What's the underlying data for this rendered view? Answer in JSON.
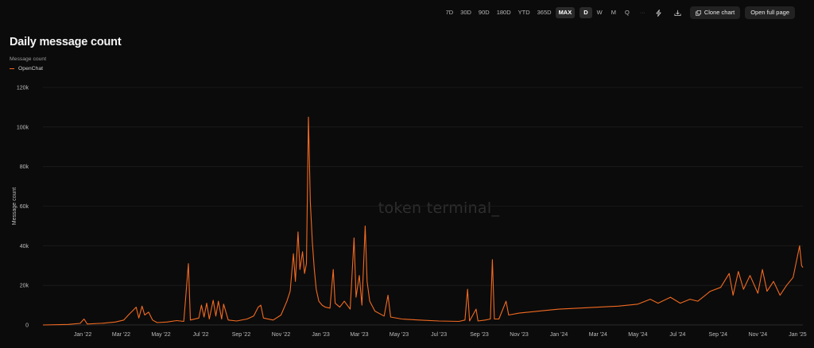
{
  "toolbar": {
    "ranges": [
      "7D",
      "30D",
      "90D",
      "180D",
      "YTD",
      "365D",
      "MAX"
    ],
    "active_range": "MAX",
    "granularities": [
      "D",
      "W",
      "M",
      "Q"
    ],
    "active_granularity": "D",
    "more": "···",
    "clone_label": "Clone chart",
    "open_label": "Open full page"
  },
  "chart_data": {
    "type": "line",
    "title": "Daily message count",
    "legend_title": "Message count",
    "legend_position": "top-left",
    "series": [
      {
        "name": "OpenChat",
        "color": "#f26a21",
        "points": [
          [
            "2021-11-01",
            0
          ],
          [
            "2021-12-10",
            300
          ],
          [
            "2021-12-28",
            800
          ],
          [
            "2022-01-03",
            3000
          ],
          [
            "2022-01-08",
            500
          ],
          [
            "2022-02-01",
            900
          ],
          [
            "2022-02-20",
            1500
          ],
          [
            "2022-03-05",
            2500
          ],
          [
            "2022-03-12",
            5000
          ],
          [
            "2022-03-18",
            7000
          ],
          [
            "2022-03-24",
            9000
          ],
          [
            "2022-03-28",
            3500
          ],
          [
            "2022-04-02",
            9500
          ],
          [
            "2022-04-06",
            5000
          ],
          [
            "2022-04-12",
            6500
          ],
          [
            "2022-04-18",
            2500
          ],
          [
            "2022-04-25",
            1200
          ],
          [
            "2022-05-10",
            1500
          ],
          [
            "2022-05-25",
            2200
          ],
          [
            "2022-06-05",
            1800
          ],
          [
            "2022-06-12",
            31000
          ],
          [
            "2022-06-15",
            2500
          ],
          [
            "2022-06-28",
            3500
          ],
          [
            "2022-07-02",
            10000
          ],
          [
            "2022-07-06",
            4000
          ],
          [
            "2022-07-10",
            11000
          ],
          [
            "2022-07-14",
            3000
          ],
          [
            "2022-07-20",
            12500
          ],
          [
            "2022-07-24",
            4500
          ],
          [
            "2022-07-28",
            12000
          ],
          [
            "2022-08-02",
            3000
          ],
          [
            "2022-08-05",
            10500
          ],
          [
            "2022-08-12",
            2500
          ],
          [
            "2022-08-25",
            2000
          ],
          [
            "2022-09-10",
            3000
          ],
          [
            "2022-09-20",
            4500
          ],
          [
            "2022-09-27",
            9000
          ],
          [
            "2022-10-01",
            10000
          ],
          [
            "2022-10-05",
            3500
          ],
          [
            "2022-10-20",
            2500
          ],
          [
            "2022-11-01",
            5000
          ],
          [
            "2022-11-10",
            12000
          ],
          [
            "2022-11-15",
            17000
          ],
          [
            "2022-11-20",
            36000
          ],
          [
            "2022-11-23",
            22000
          ],
          [
            "2022-11-27",
            47000
          ],
          [
            "2022-11-30",
            28000
          ],
          [
            "2022-12-04",
            37000
          ],
          [
            "2022-12-07",
            26000
          ],
          [
            "2022-12-10",
            31000
          ],
          [
            "2022-12-13",
            105000
          ],
          [
            "2022-12-16",
            62000
          ],
          [
            "2022-12-19",
            42000
          ],
          [
            "2022-12-22",
            28000
          ],
          [
            "2022-12-25",
            18000
          ],
          [
            "2022-12-29",
            12000
          ],
          [
            "2023-01-03",
            10000
          ],
          [
            "2023-01-08",
            9000
          ],
          [
            "2023-01-15",
            8500
          ],
          [
            "2023-01-20",
            28000
          ],
          [
            "2023-01-23",
            11000
          ],
          [
            "2023-01-30",
            9000
          ],
          [
            "2023-02-06",
            12000
          ],
          [
            "2023-02-15",
            8000
          ],
          [
            "2023-02-21",
            44000
          ],
          [
            "2023-02-24",
            14000
          ],
          [
            "2023-03-01",
            25000
          ],
          [
            "2023-03-05",
            10000
          ],
          [
            "2023-03-10",
            50000
          ],
          [
            "2023-03-13",
            22000
          ],
          [
            "2023-03-17",
            12000
          ],
          [
            "2023-03-25",
            7000
          ],
          [
            "2023-04-08",
            4500
          ],
          [
            "2023-04-14",
            15000
          ],
          [
            "2023-04-18",
            4000
          ],
          [
            "2023-05-05",
            3000
          ],
          [
            "2023-06-01",
            2500
          ],
          [
            "2023-07-01",
            2000
          ],
          [
            "2023-08-01",
            1800
          ],
          [
            "2023-08-10",
            2500
          ],
          [
            "2023-08-14",
            18000
          ],
          [
            "2023-08-17",
            2000
          ],
          [
            "2023-08-27",
            8000
          ],
          [
            "2023-08-30",
            2000
          ],
          [
            "2023-09-10",
            2500
          ],
          [
            "2023-09-18",
            3000
          ],
          [
            "2023-09-21",
            33000
          ],
          [
            "2023-09-24",
            3000
          ],
          [
            "2023-10-01",
            3000
          ],
          [
            "2023-10-12",
            12000
          ],
          [
            "2023-10-16",
            5000
          ],
          [
            "2023-11-01",
            6000
          ],
          [
            "2023-12-01",
            7000
          ],
          [
            "2024-01-01",
            8000
          ],
          [
            "2024-02-01",
            8500
          ],
          [
            "2024-03-01",
            9000
          ],
          [
            "2024-04-01",
            9500
          ],
          [
            "2024-05-01",
            10500
          ],
          [
            "2024-05-20",
            13000
          ],
          [
            "2024-06-01",
            11000
          ],
          [
            "2024-06-20",
            14000
          ],
          [
            "2024-07-05",
            11000
          ],
          [
            "2024-07-20",
            13000
          ],
          [
            "2024-08-01",
            12000
          ],
          [
            "2024-08-20",
            17000
          ],
          [
            "2024-09-05",
            19000
          ],
          [
            "2024-09-18",
            26000
          ],
          [
            "2024-09-24",
            15000
          ],
          [
            "2024-10-02",
            27000
          ],
          [
            "2024-10-10",
            18000
          ],
          [
            "2024-10-20",
            25000
          ],
          [
            "2024-11-01",
            16000
          ],
          [
            "2024-11-08",
            28000
          ],
          [
            "2024-11-15",
            17000
          ],
          [
            "2024-11-25",
            22000
          ],
          [
            "2024-12-05",
            15000
          ],
          [
            "2024-12-15",
            20000
          ],
          [
            "2024-12-25",
            24000
          ],
          [
            "2025-01-04",
            40000
          ],
          [
            "2025-01-07",
            30000
          ],
          [
            "2025-01-09",
            29000
          ]
        ]
      }
    ],
    "x_ticks": [
      [
        "2022-01-01",
        "Jan '22"
      ],
      [
        "2022-03-01",
        "Mar '22"
      ],
      [
        "2022-05-01",
        "May '22"
      ],
      [
        "2022-07-01",
        "Jul '22"
      ],
      [
        "2022-09-01",
        "Sep '22"
      ],
      [
        "2022-11-01",
        "Nov '22"
      ],
      [
        "2023-01-01",
        "Jan '23"
      ],
      [
        "2023-03-01",
        "Mar '23"
      ],
      [
        "2023-05-01",
        "May '23"
      ],
      [
        "2023-07-01",
        "Jul '23"
      ],
      [
        "2023-09-01",
        "Sep '23"
      ],
      [
        "2023-11-01",
        "Nov '23"
      ],
      [
        "2024-01-01",
        "Jan '24"
      ],
      [
        "2024-03-01",
        "Mar '24"
      ],
      [
        "2024-05-01",
        "May '24"
      ],
      [
        "2024-07-01",
        "Jul '24"
      ],
      [
        "2024-09-01",
        "Sep '24"
      ],
      [
        "2024-11-01",
        "Nov '24"
      ],
      [
        "2025-01-01",
        "Jan '25"
      ]
    ],
    "x_range": [
      "2021-11-01",
      "2025-01-09"
    ],
    "y_ticks": [
      0,
      20000,
      40000,
      60000,
      80000,
      100000,
      120000
    ],
    "y_tick_labels": [
      "0",
      "20k",
      "40k",
      "60k",
      "80k",
      "100k",
      "120k"
    ],
    "ylim": [
      0,
      120000
    ],
    "ylabel": "Message count",
    "grid": true,
    "watermark": "token terminal_"
  }
}
